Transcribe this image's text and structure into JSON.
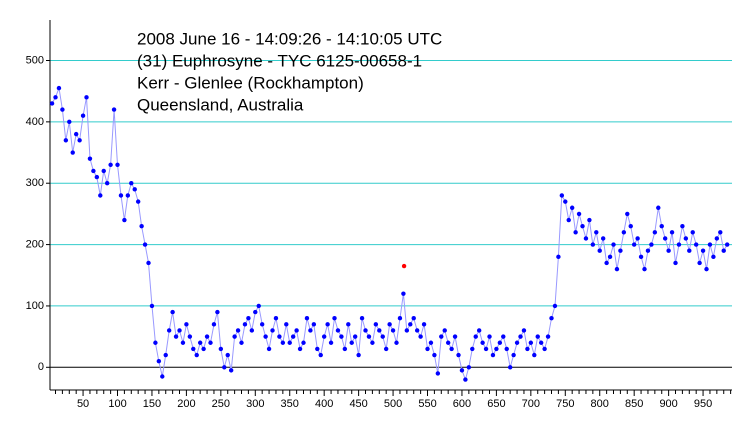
{
  "chart_data": {
    "type": "scatter-line",
    "annotations": [
      "2008 June 16 - 14:09:26 - 14:10:05 UTC",
      "(31) Euphrosyne - TYC 6125-00658-1",
      "Kerr - Glenlee (Rockhampton)",
      "Queensland, Australia"
    ],
    "xlim": [
      2,
      992
    ],
    "ylim": [
      -37,
      566
    ],
    "xticks": [
      50,
      100,
      150,
      200,
      250,
      300,
      350,
      400,
      450,
      500,
      550,
      600,
      650,
      700,
      750,
      800,
      850,
      900,
      950
    ],
    "xminorticks": [
      10,
      20,
      30,
      40,
      60,
      70,
      80,
      90,
      110,
      120,
      130,
      140,
      160,
      170,
      180,
      190,
      210,
      220,
      230,
      240,
      260,
      270,
      280,
      290,
      310,
      320,
      330,
      340,
      360,
      370,
      380,
      390,
      410,
      420,
      430,
      440,
      460,
      470,
      480,
      490,
      510,
      520,
      530,
      540,
      560,
      570,
      580,
      590,
      610,
      620,
      630,
      640,
      660,
      670,
      680,
      690,
      710,
      720,
      730,
      740,
      760,
      770,
      780,
      790,
      810,
      820,
      830,
      840,
      860,
      870,
      880,
      890,
      910,
      920,
      930,
      940,
      960,
      970,
      980,
      990
    ],
    "yticks": [
      0,
      100,
      200,
      300,
      400,
      500
    ],
    "grid": true,
    "grid_color": "#33cccc",
    "series": [
      {
        "color": "#0000ff",
        "line_color": "#9999ff",
        "x": [
          5,
          10,
          15,
          20,
          25,
          30,
          35,
          40,
          45,
          50,
          55,
          60,
          65,
          70,
          75,
          80,
          85,
          90,
          95,
          100,
          105,
          110,
          115,
          120,
          125,
          130,
          135,
          140,
          145,
          150,
          155,
          160,
          165,
          170,
          175,
          180,
          185,
          190,
          195,
          200,
          205,
          210,
          215,
          220,
          225,
          230,
          235,
          240,
          245,
          250,
          255,
          260,
          265,
          270,
          275,
          280,
          285,
          290,
          295,
          300,
          305,
          310,
          315,
          320,
          325,
          330,
          335,
          340,
          345,
          350,
          355,
          360,
          365,
          370,
          375,
          380,
          385,
          390,
          395,
          400,
          405,
          410,
          415,
          420,
          425,
          430,
          435,
          440,
          445,
          450,
          455,
          460,
          465,
          470,
          475,
          480,
          485,
          490,
          495,
          500,
          505,
          510,
          515,
          520,
          525,
          530,
          535,
          540,
          545,
          550,
          555,
          560,
          565,
          570,
          575,
          580,
          585,
          590,
          595,
          600,
          605,
          610,
          615,
          620,
          625,
          630,
          635,
          640,
          645,
          650,
          655,
          660,
          665,
          670,
          675,
          680,
          685,
          690,
          695,
          700,
          705,
          710,
          715,
          720,
          725,
          730,
          735,
          740,
          745,
          750,
          755,
          760,
          765,
          770,
          775,
          780,
          785,
          790,
          795,
          800,
          805,
          810,
          815,
          820,
          825,
          830,
          835,
          840,
          845,
          850,
          855,
          860,
          865,
          870,
          875,
          880,
          885,
          890,
          895,
          900,
          905,
          910,
          915,
          920,
          925,
          930,
          935,
          940,
          945,
          950,
          955,
          960,
          965,
          970,
          975,
          980,
          985
        ],
        "values": [
          430,
          440,
          455,
          420,
          370,
          400,
          350,
          380,
          370,
          410,
          440,
          340,
          320,
          310,
          280,
          320,
          300,
          330,
          420,
          330,
          280,
          240,
          280,
          300,
          290,
          270,
          230,
          200,
          170,
          100,
          40,
          10,
          -15,
          20,
          60,
          90,
          50,
          60,
          40,
          70,
          50,
          30,
          20,
          40,
          30,
          50,
          40,
          70,
          90,
          30,
          0,
          20,
          -5,
          50,
          60,
          40,
          70,
          80,
          60,
          90,
          100,
          70,
          50,
          30,
          60,
          80,
          50,
          40,
          70,
          40,
          50,
          60,
          30,
          40,
          80,
          60,
          70,
          30,
          20,
          50,
          70,
          40,
          80,
          60,
          50,
          30,
          70,
          40,
          50,
          20,
          80,
          60,
          50,
          40,
          70,
          60,
          50,
          30,
          70,
          60,
          40,
          80,
          120,
          60,
          70,
          80,
          60,
          50,
          70,
          30,
          40,
          20,
          -10,
          50,
          60,
          40,
          30,
          50,
          20,
          -5,
          -20,
          0,
          30,
          50,
          60,
          40,
          30,
          50,
          20,
          30,
          40,
          50,
          30,
          0,
          20,
          40,
          50,
          60,
          30,
          40,
          20,
          50,
          40,
          30,
          50,
          80,
          100,
          180,
          280,
          270,
          240,
          260,
          220,
          250,
          230,
          210,
          240,
          200,
          220,
          190,
          210,
          170,
          180,
          200,
          160,
          190,
          220,
          250,
          230,
          200,
          210,
          180,
          160,
          190,
          200,
          220,
          260,
          230,
          210,
          190,
          220,
          170,
          200,
          230,
          210,
          190,
          220,
          200,
          170,
          190,
          160,
          200,
          180,
          210,
          220,
          190,
          200
        ]
      }
    ],
    "highlight_point": {
      "x": 516,
      "value": 165,
      "color": "#ff0000"
    }
  }
}
